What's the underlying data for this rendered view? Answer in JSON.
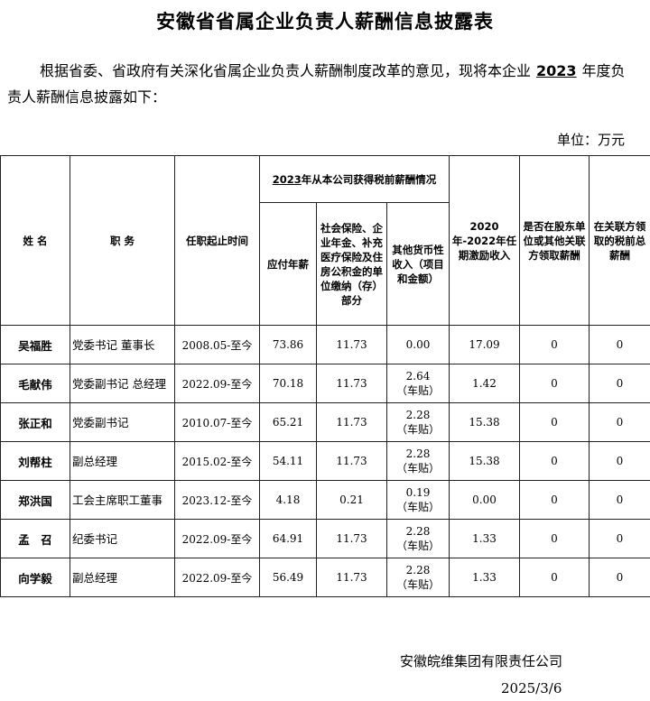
{
  "title": "安徽省省属企业负责人薪酬信息披露表",
  "intro": {
    "before": "根据省委、省政府有关深化省属企业负责人薪酬制度改革的意见，现将本企业",
    "year": "2023",
    "after": "年度负责人薪酬信息披露如下："
  },
  "unit": "单位：万元",
  "headers": {
    "name": "姓 名",
    "position": "职 务",
    "term": "任职起止时间",
    "group_year": "2023",
    "group_rest": "年从本公司获得税前薪酬情况",
    "salary": "应付年薪",
    "insurance": "社会保险、企业年金、补充医疗保险及住房公积金的单位缴纳（存）部分",
    "other": "其他货币性收入（项目和金额）",
    "incentive": "2020年-2022年任期激励收入",
    "shareholder": "是否在股东单位或其他关联方领取薪酬",
    "related": "在关联方领取的税前总薪酬"
  },
  "rows": [
    {
      "name": "吴福胜",
      "position": "党委书记 董事长",
      "term": "2008.05-至今",
      "salary": "73.86",
      "insurance": "11.73",
      "other": "0.00",
      "other_note": "",
      "incentive": "17.09",
      "shareholder": "0",
      "related": "0"
    },
    {
      "name": "毛献伟",
      "position": "党委副书记 总经理",
      "term": "2022.09-至今",
      "salary": "70.18",
      "insurance": "11.73",
      "other": "2.64",
      "other_note": "（车贴）",
      "incentive": "1.42",
      "shareholder": "0",
      "related": "0"
    },
    {
      "name": "张正和",
      "position": "党委副书记",
      "term": "2010.07-至今",
      "salary": "65.21",
      "insurance": "11.73",
      "other": "2.28",
      "other_note": "（车贴）",
      "incentive": "15.38",
      "shareholder": "0",
      "related": "0"
    },
    {
      "name": "刘帮柱",
      "position": "副总经理",
      "term": "2015.02-至今",
      "salary": "54.11",
      "insurance": "11.73",
      "other": "2.28",
      "other_note": "（车贴）",
      "incentive": "15.38",
      "shareholder": "0",
      "related": "0"
    },
    {
      "name": "郑洪国",
      "position": "工会主席职工董事",
      "term": "2023.12-至今",
      "salary": "4.18",
      "insurance": "0.21",
      "other": "0.19",
      "other_note": "（车贴）",
      "incentive": "0.00",
      "shareholder": "0",
      "related": "0"
    },
    {
      "name": "孟　召",
      "position": "纪委书记",
      "term": "2022.09-至今",
      "salary": "64.91",
      "insurance": "11.73",
      "other": "2.28",
      "other_note": "（车贴）",
      "incentive": "1.33",
      "shareholder": "0",
      "related": "0"
    },
    {
      "name": "向学毅",
      "position": "副总经理",
      "term": "2022.09-至今",
      "salary": "56.49",
      "insurance": "11.73",
      "other": "2.28",
      "other_note": "（车贴）",
      "incentive": "1.33",
      "shareholder": "0",
      "related": "0"
    }
  ],
  "footer": {
    "organization": "安徽皖维集团有限责任公司",
    "date": "2025/3/6"
  }
}
